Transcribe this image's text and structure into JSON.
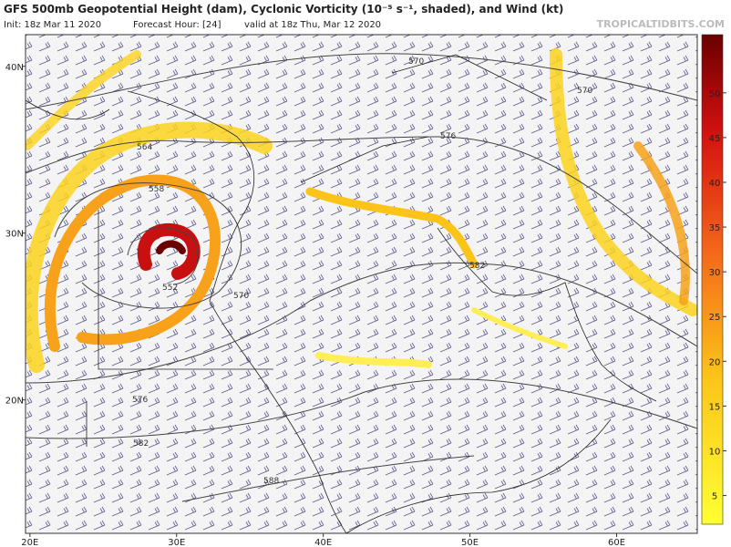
{
  "header": {
    "title": "GFS 500mb Geopotential Height (dam), Cyclonic Vorticity (10⁻⁵ s⁻¹, shaded), and Wind (kt)",
    "init": "Init: 18z Mar 11 2020",
    "forecast": "Forecast Hour: [24]",
    "valid": "valid at 18z Thu, Mar 12 2020"
  },
  "watermark": "TROPICALTIDBITS.COM",
  "map": {
    "lonlim": [
      19.7,
      65.5
    ],
    "latlim": [
      12,
      41.9
    ],
    "lon_ticks": [
      {
        "value": 20,
        "label": "20E"
      },
      {
        "value": 30,
        "label": "30E"
      },
      {
        "value": 40,
        "label": "40E"
      },
      {
        "value": 50,
        "label": "50E"
      },
      {
        "value": 60,
        "label": "60E"
      }
    ],
    "lat_ticks": [
      {
        "value": 40,
        "label": "40N"
      },
      {
        "value": 30,
        "label": "30N"
      },
      {
        "value": 20,
        "label": "20N"
      }
    ],
    "contour_labels": [
      "570",
      "570",
      "576",
      "564",
      "558",
      "552",
      "570",
      "582",
      "576",
      "582",
      "588"
    ]
  },
  "colorbar": {
    "lim": [
      1.8,
      56.5
    ],
    "ticks": [
      5,
      10,
      15,
      20,
      25,
      30,
      35,
      40,
      45,
      50
    ]
  }
}
